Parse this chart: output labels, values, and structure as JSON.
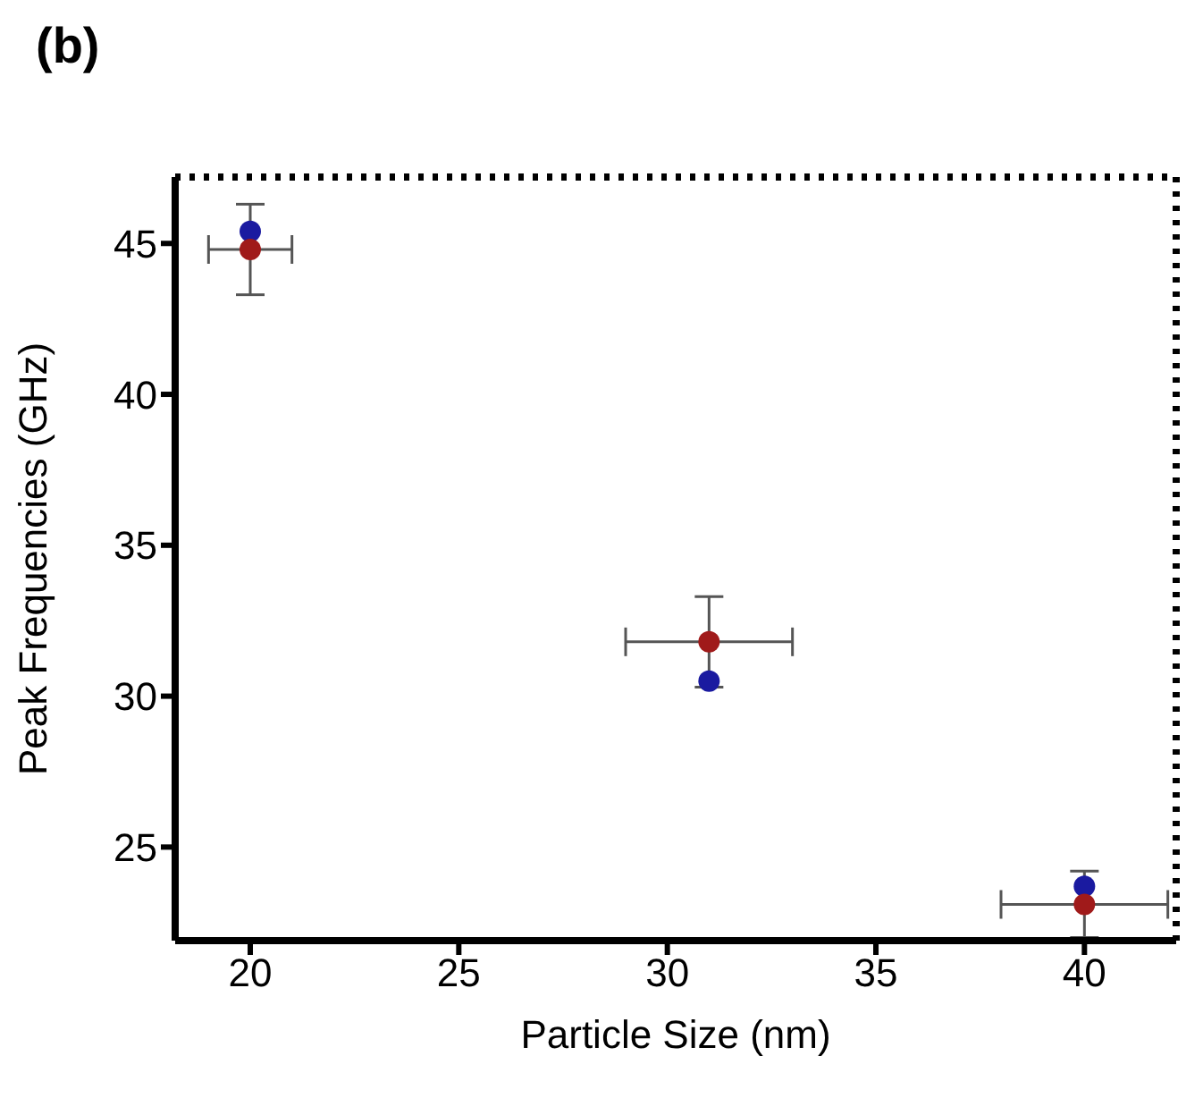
{
  "chart_data": {
    "type": "scatter",
    "title": "(b)",
    "xlabel": "Particle Size (nm)",
    "ylabel": "Peak Frequencies (GHz)",
    "x": [
      20,
      31,
      40
    ],
    "series": [
      {
        "color": "#1a1aa0",
        "values": [
          45.4,
          30.5,
          23.7
        ]
      },
      {
        "color": "#a01a1a",
        "values": [
          44.8,
          31.8,
          23.1
        ],
        "errors": [
          1.5,
          1.5,
          1.1
        ],
        "xerrors": [
          1,
          2,
          2
        ]
      }
    ],
    "xlim": [
      18.2,
      42.2
    ],
    "xticks": [
      20,
      25,
      30,
      35,
      40
    ],
    "ylim": [
      21.9,
      47.2
    ],
    "yticks": [
      25,
      30,
      35,
      40,
      45
    ],
    "grid": false,
    "legend": false,
    "marker": "circle"
  }
}
